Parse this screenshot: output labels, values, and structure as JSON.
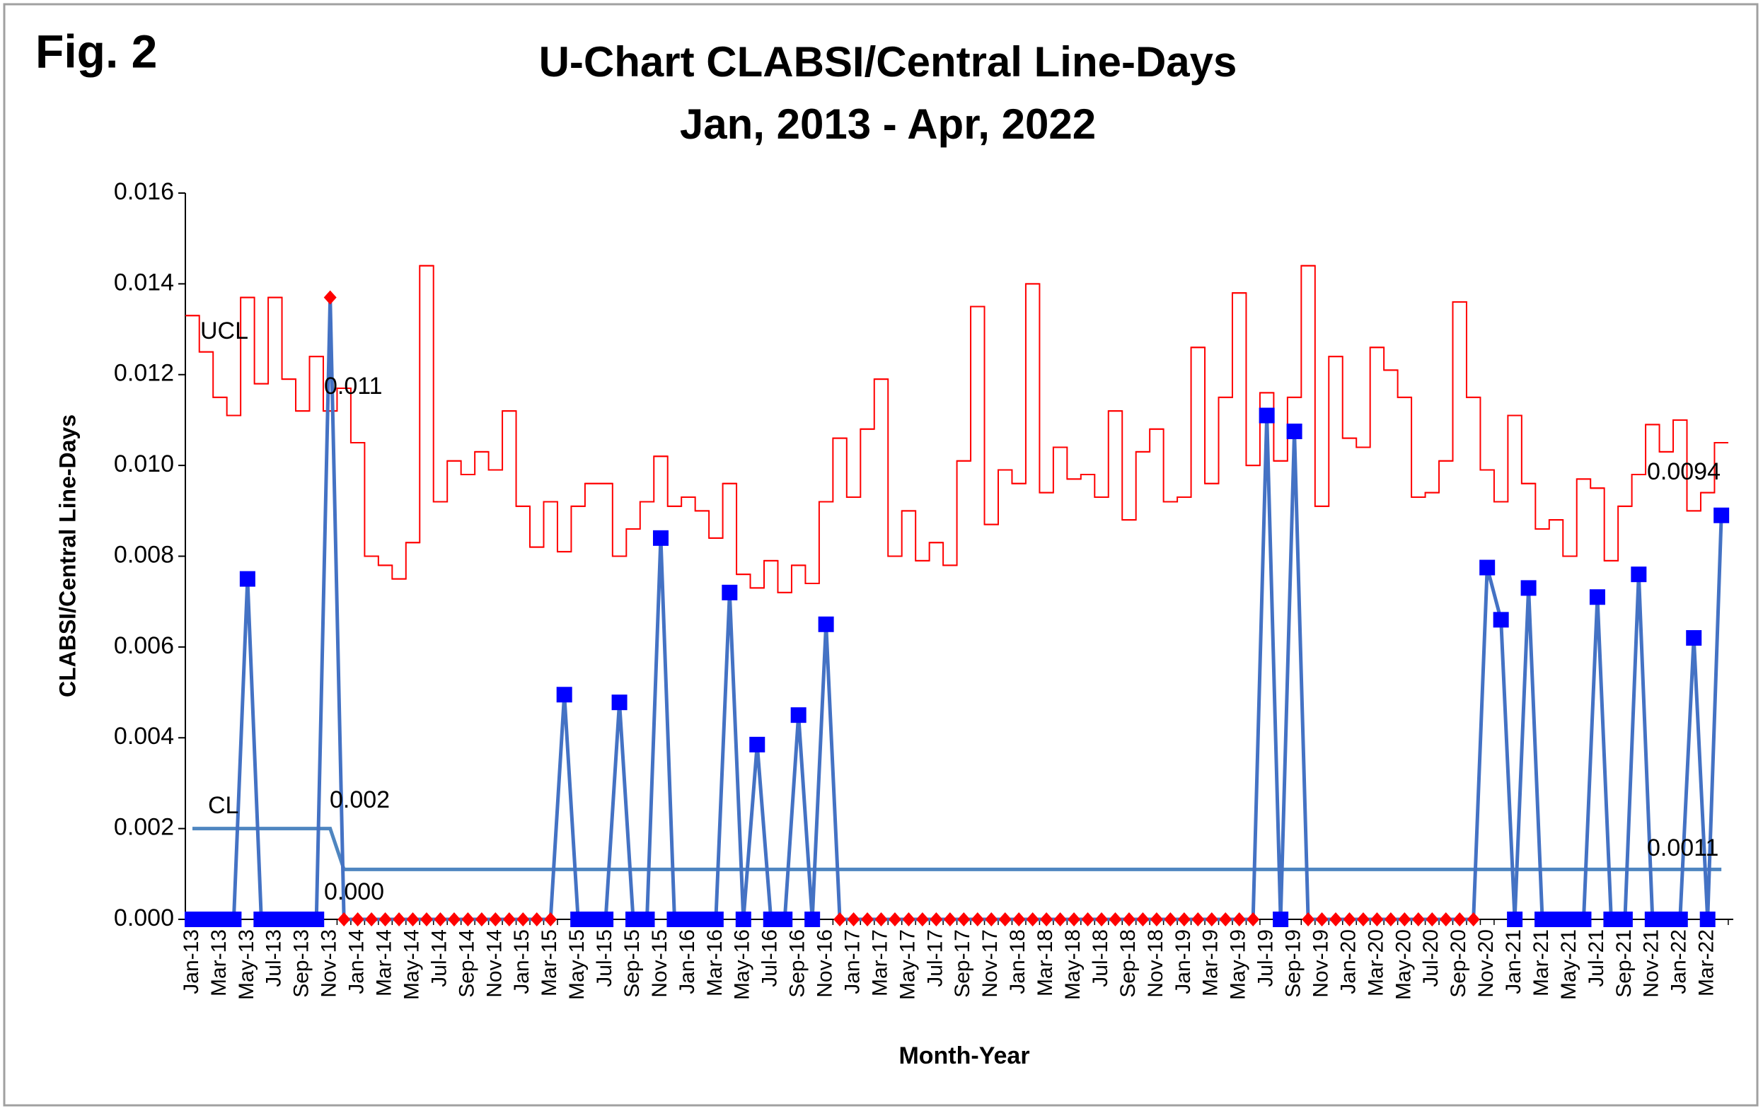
{
  "figure_label": "Fig. 2",
  "chart_data": {
    "type": "line",
    "title": "U-Chart CLABSI/Central Line-Days",
    "subtitle": "Jan, 2013 - Apr, 2022",
    "x_label": "Month-Year",
    "y_label": "CLABSI/Central Line-Days",
    "categories": [
      "Jan-13",
      null,
      "Mar-13",
      null,
      "May-13",
      null,
      "Jul-13",
      null,
      "Sep-13",
      null,
      "Nov-13",
      null,
      "Jan-14",
      null,
      "Mar-14",
      null,
      "May-14",
      null,
      "Jul-14",
      null,
      "Sep-14",
      null,
      "Nov-14",
      null,
      "Jan-15",
      null,
      "Mar-15",
      null,
      "May-15",
      null,
      "Jul-15",
      null,
      "Sep-15",
      null,
      "Nov-15",
      null,
      "Jan-16",
      null,
      "Mar-16",
      null,
      "May-16",
      null,
      "Jul-16",
      null,
      "Sep-16",
      null,
      "Nov-16",
      null,
      "Jan-17",
      null,
      "Mar-17",
      null,
      "May-17",
      null,
      "Jul-17",
      null,
      "Sep-17",
      null,
      "Nov-17",
      null,
      "Jan-18",
      null,
      "Mar-18",
      null,
      "May-18",
      null,
      "Jul-18",
      null,
      "Sep-18",
      null,
      "Nov-18",
      null,
      "Jan-19",
      null,
      "Mar-19",
      null,
      "May-19",
      null,
      "Jul-19",
      null,
      "Sep-19",
      null,
      "Nov-19",
      null,
      "Jan-20",
      null,
      "Mar-20",
      null,
      "May-20",
      null,
      "Jul-20",
      null,
      "Sep-20",
      null,
      "Nov-20",
      null,
      "Jan-21",
      null,
      "Mar-21",
      null,
      "May-21",
      null,
      "Jul-21",
      null,
      "Sep-21",
      null,
      "Nov-21",
      null,
      "Jan-22",
      null,
      "Mar-22",
      null
    ],
    "ylim": [
      0,
      0.016
    ],
    "yticks": [
      {
        "value": 0,
        "label": "0.000"
      },
      {
        "value": 0.002,
        "label": "0.002"
      },
      {
        "value": 0.004,
        "label": "0.004"
      },
      {
        "value": 0.006,
        "label": "0.006"
      },
      {
        "value": 0.008,
        "label": "0.008"
      },
      {
        "value": 0.01,
        "label": "0.010"
      },
      {
        "value": 0.012,
        "label": "0.012"
      },
      {
        "value": 0.014,
        "label": "0.014"
      },
      {
        "value": 0.016,
        "label": "0.016"
      }
    ],
    "series": [
      {
        "color": "#4472c4",
        "marker_color": "#0000ff",
        "values": [
          0,
          0,
          0,
          0,
          0.0075,
          0,
          0,
          0,
          0,
          0,
          0.0137,
          0,
          0,
          0,
          0,
          0,
          0,
          0,
          0,
          0,
          0,
          0,
          0,
          0,
          0,
          0,
          0,
          0.00495,
          0,
          0,
          0,
          0.00478,
          0,
          0,
          0.0084,
          0,
          0,
          0,
          0,
          0.0072,
          0,
          0.00385,
          0,
          0,
          0.0045,
          0,
          0.0065,
          0,
          0,
          0,
          0,
          0,
          0,
          0,
          0,
          0,
          0,
          0,
          0,
          0,
          0,
          0,
          0,
          0,
          0,
          0,
          0,
          0,
          0,
          0,
          0,
          0,
          0,
          0,
          0,
          0,
          0,
          0,
          0.0111,
          0,
          0.01075,
          0,
          0,
          0,
          0,
          0,
          0,
          0,
          0,
          0,
          0,
          0,
          0,
          0,
          0.00775,
          0.0066,
          0,
          0.0073,
          0,
          0,
          0,
          0,
          0.0071,
          0,
          0,
          0.0076,
          0,
          0,
          0,
          0.0062,
          0,
          0.0089
        ],
        "marker_colors": [
          "#0000ff",
          "#0000ff",
          "#0000ff",
          "#0000ff",
          "#0000ff",
          "#0000ff",
          "#0000ff",
          "#0000ff",
          "#0000ff",
          "#0000ff",
          "#ff0000",
          "#ff0000",
          "#ff0000",
          "#ff0000",
          "#ff0000",
          "#ff0000",
          "#ff0000",
          "#ff0000",
          "#ff0000",
          "#ff0000",
          "#ff0000",
          "#ff0000",
          "#ff0000",
          "#ff0000",
          "#ff0000",
          "#ff0000",
          "#ff0000",
          "#0000ff",
          "#0000ff",
          "#0000ff",
          "#0000ff",
          "#0000ff",
          "#0000ff",
          "#0000ff",
          "#0000ff",
          "#0000ff",
          "#0000ff",
          "#0000ff",
          "#0000ff",
          "#0000ff",
          "#0000ff",
          "#0000ff",
          "#0000ff",
          "#0000ff",
          "#0000ff",
          "#0000ff",
          "#0000ff",
          "#ff0000",
          "#ff0000",
          "#ff0000",
          "#ff0000",
          "#ff0000",
          "#ff0000",
          "#ff0000",
          "#ff0000",
          "#ff0000",
          "#ff0000",
          "#ff0000",
          "#ff0000",
          "#ff0000",
          "#ff0000",
          "#ff0000",
          "#ff0000",
          "#ff0000",
          "#ff0000",
          "#ff0000",
          "#ff0000",
          "#ff0000",
          "#ff0000",
          "#ff0000",
          "#ff0000",
          "#ff0000",
          "#ff0000",
          "#ff0000",
          "#ff0000",
          "#ff0000",
          "#ff0000",
          "#ff0000",
          "#0000ff",
          "#0000ff",
          "#0000ff",
          "#ff0000",
          "#ff0000",
          "#ff0000",
          "#ff0000",
          "#ff0000",
          "#ff0000",
          "#ff0000",
          "#ff0000",
          "#ff0000",
          "#ff0000",
          "#ff0000",
          "#ff0000",
          "#ff0000",
          "#0000ff",
          "#0000ff",
          "#0000ff",
          "#0000ff",
          "#0000ff",
          "#0000ff",
          "#0000ff",
          "#0000ff",
          "#0000ff",
          "#0000ff",
          "#0000ff",
          "#0000ff",
          "#0000ff",
          "#0000ff",
          "#0000ff",
          "#0000ff",
          "#0000ff",
          "#0000ff"
        ]
      },
      {
        "color": "#ff0000",
        "style": "step",
        "values": [
          0.0133,
          0.0125,
          0.0115,
          0.0111,
          0.0137,
          0.0118,
          0.0137,
          0.0119,
          0.0112,
          0.0124,
          0.0112,
          0.0117,
          0.0105,
          0.008,
          0.0078,
          0.0075,
          0.0083,
          0.0144,
          0.0092,
          0.0101,
          0.0098,
          0.0103,
          0.0099,
          0.0112,
          0.0091,
          0.0082,
          0.0092,
          0.0081,
          0.0091,
          0.0096,
          0.0096,
          0.008,
          0.0086,
          0.0092,
          0.0102,
          0.0091,
          0.0093,
          0.009,
          0.0084,
          0.0096,
          0.0076,
          0.0073,
          0.0079,
          0.0072,
          0.0078,
          0.0074,
          0.0092,
          0.0106,
          0.0093,
          0.0108,
          0.0119,
          0.008,
          0.009,
          0.0079,
          0.0083,
          0.0078,
          0.0101,
          0.0135,
          0.0087,
          0.0099,
          0.0096,
          0.014,
          0.0094,
          0.0104,
          0.0097,
          0.0098,
          0.0093,
          0.0112,
          0.0088,
          0.0103,
          0.0108,
          0.0092,
          0.0093,
          0.0126,
          0.0096,
          0.0115,
          0.0138,
          0.01,
          0.0116,
          0.0101,
          0.0115,
          0.0144,
          0.0091,
          0.0124,
          0.0106,
          0.0104,
          0.0126,
          0.0121,
          0.0115,
          0.0093,
          0.0094,
          0.0101,
          0.0136,
          0.0115,
          0.0099,
          0.0092,
          0.0111,
          0.0096,
          0.0086,
          0.0088,
          0.008,
          0.0097,
          0.0095,
          0.0079,
          0.0091,
          0.0098,
          0.0109,
          0.0103,
          0.011,
          0.009,
          0.0094,
          0.0105
        ]
      },
      {
        "color": "#4f86c0",
        "values": [
          0.002,
          0.002,
          0.002,
          0.002,
          0.002,
          0.002,
          0.002,
          0.002,
          0.002,
          0.002,
          0.002,
          0.0011,
          0.0011,
          0.0011,
          0.0011,
          0.0011,
          0.0011,
          0.0011,
          0.0011,
          0.0011,
          0.0011,
          0.0011,
          0.0011,
          0.0011,
          0.0011,
          0.0011,
          0.0011,
          0.0011,
          0.0011,
          0.0011,
          0.0011,
          0.0011,
          0.0011,
          0.0011,
          0.0011,
          0.0011,
          0.0011,
          0.0011,
          0.0011,
          0.0011,
          0.0011,
          0.0011,
          0.0011,
          0.0011,
          0.0011,
          0.0011,
          0.0011,
          0.0011,
          0.0011,
          0.0011,
          0.0011,
          0.0011,
          0.0011,
          0.0011,
          0.0011,
          0.0011,
          0.0011,
          0.0011,
          0.0011,
          0.0011,
          0.0011,
          0.0011,
          0.0011,
          0.0011,
          0.0011,
          0.0011,
          0.0011,
          0.0011,
          0.0011,
          0.0011,
          0.0011,
          0.0011,
          0.0011,
          0.0011,
          0.0011,
          0.0011,
          0.0011,
          0.0011,
          0.0011,
          0.0011,
          0.0011,
          0.0011,
          0.0011,
          0.0011,
          0.0011,
          0.0011,
          0.0011,
          0.0011,
          0.0011,
          0.0011,
          0.0011,
          0.0011,
          0.0011,
          0.0011,
          0.0011,
          0.0011,
          0.0011,
          0.0011,
          0.0011,
          0.0011,
          0.0011,
          0.0011,
          0.0011,
          0.0011,
          0.0011,
          0.0011,
          0.0011,
          0.0011,
          0.0011,
          0.0011,
          0.0011,
          0.0011
        ]
      }
    ],
    "annotations": [
      "UCL",
      "0.011",
      "CL",
      "0.002",
      "0.000",
      "0.0094",
      "0.0011"
    ]
  }
}
